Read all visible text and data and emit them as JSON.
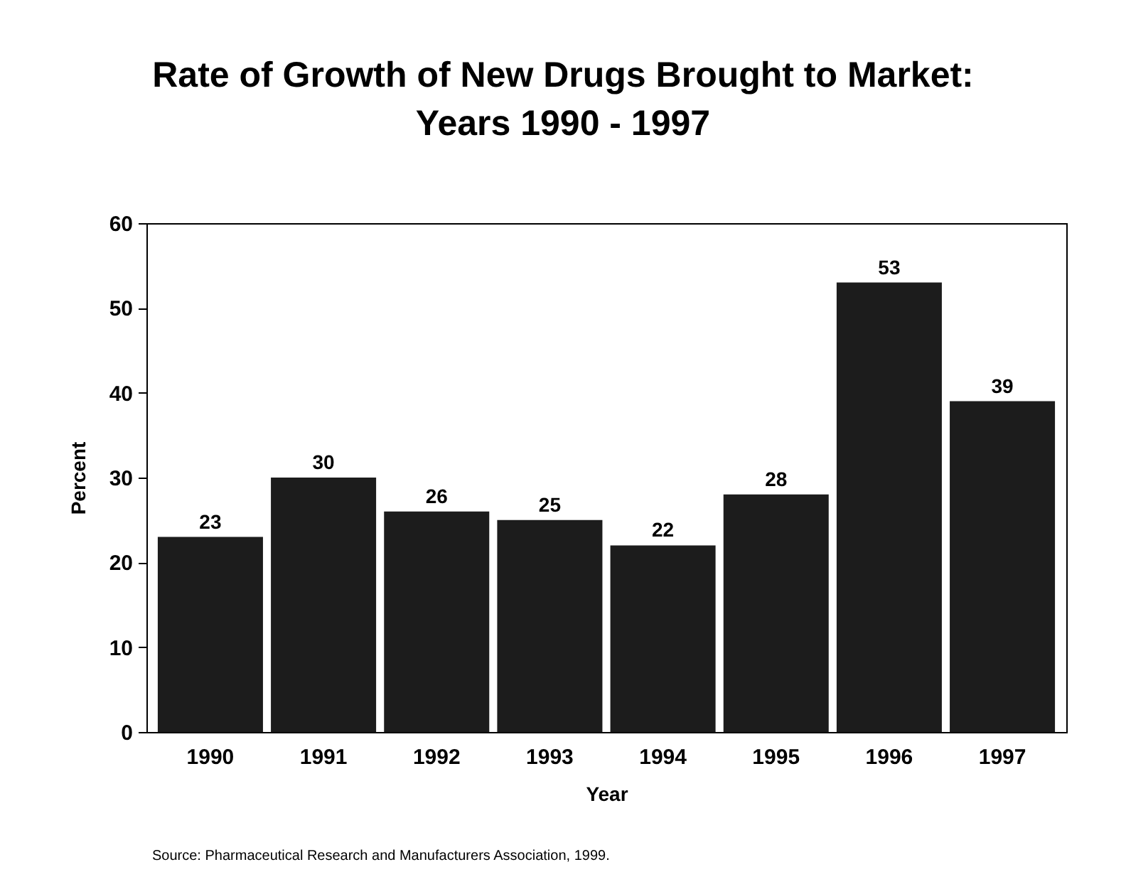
{
  "chart_data": {
    "type": "bar",
    "title": "Rate of Growth of New Drugs Brought to Market:\nYears 1990 - 1997",
    "xlabel": "Year",
    "ylabel": "Percent",
    "categories": [
      "1990",
      "1991",
      "1992",
      "1993",
      "1994",
      "1995",
      "1996",
      "1997"
    ],
    "values": [
      23,
      30,
      26,
      25,
      22,
      28,
      53,
      39
    ],
    "color": "#1c1c1c",
    "ylim": [
      0,
      60
    ],
    "yticks": [
      0,
      10,
      20,
      30,
      40,
      50,
      60
    ],
    "grid": false,
    "data_labels": true,
    "annotations": [
      "Source:  Pharmaceutical Research and Manufacturers Association, 1999."
    ]
  }
}
